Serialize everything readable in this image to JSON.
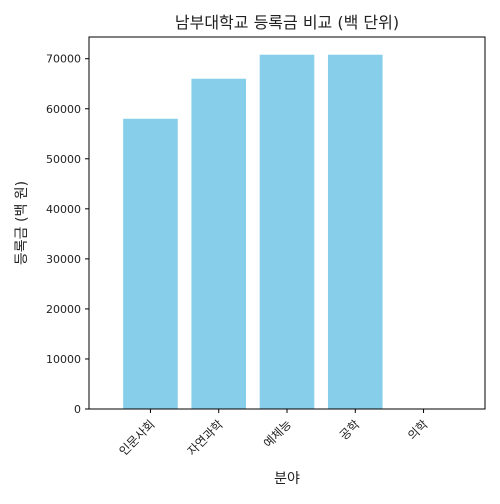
{
  "chart_data": {
    "type": "bar",
    "title": "남부대학교 등록금 비교 (백 단위)",
    "xlabel": "분야",
    "ylabel": "등록금 (백 원)",
    "categories": [
      "인문사회",
      "자연과학",
      "예체능",
      "공학",
      "의학"
    ],
    "values": [
      58000,
      66000,
      70800,
      70800,
      0
    ],
    "ylim": [
      0,
      74340
    ],
    "yticks": [
      0,
      10000,
      20000,
      30000,
      40000,
      50000,
      60000,
      70000
    ],
    "grid": false,
    "legend": "none",
    "bar_color": "#87CEEB"
  }
}
